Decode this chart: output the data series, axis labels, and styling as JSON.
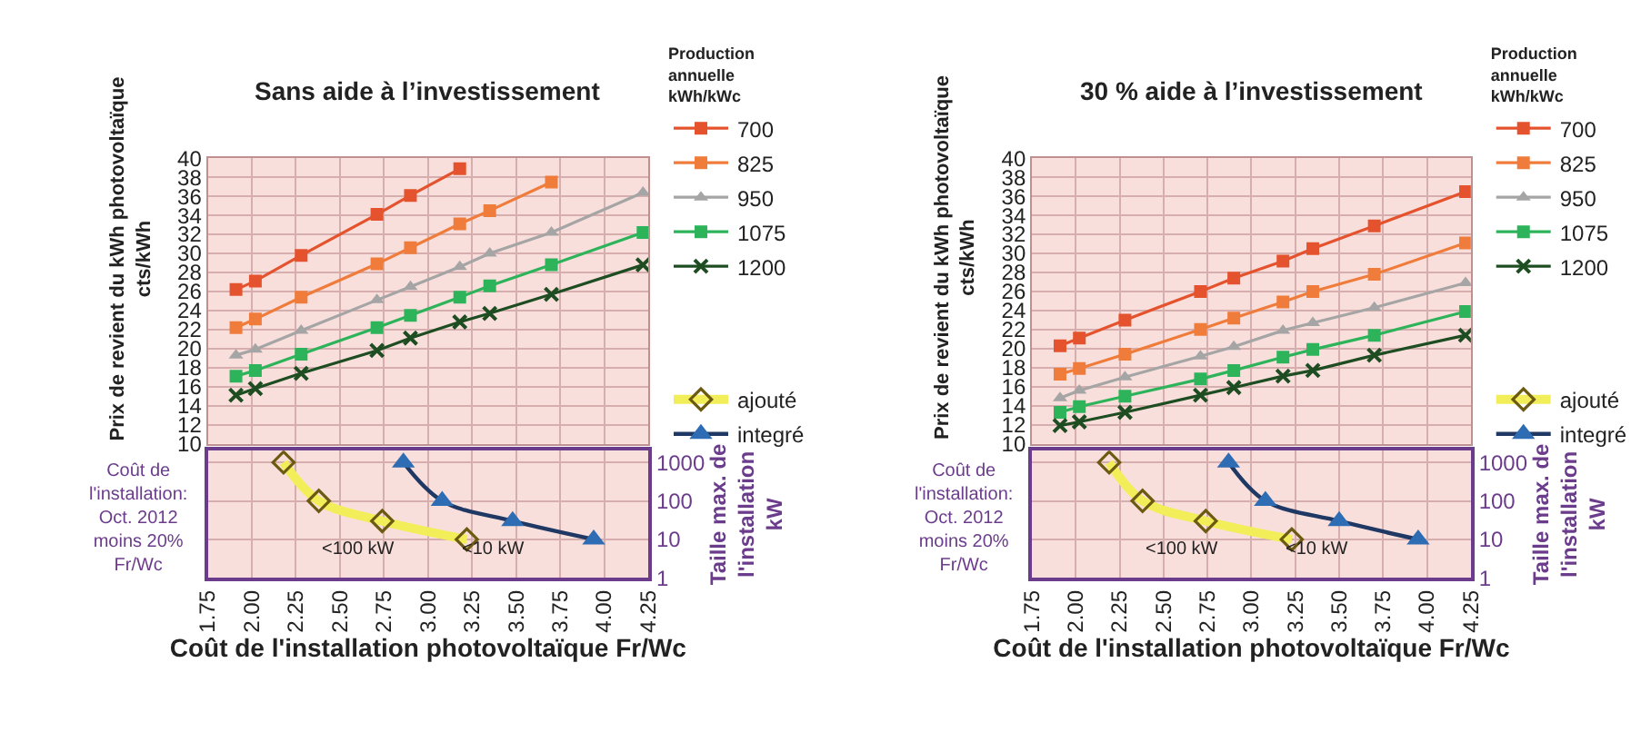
{
  "chart_data": [
    {
      "type": "line",
      "title": "Sans aide à l’investissement",
      "ylabel": "Prix de revient du kWh photovoltaïque\ncts/kWh",
      "legend_title": "Production\nannuelle\nkWh/kWc",
      "legend": "right",
      "grid": true,
      "tick_labels": "y",
      "x": [
        1.91,
        2.02,
        2.28,
        2.71,
        2.9,
        3.18,
        3.35,
        3.7,
        4.22
      ],
      "xlim": [
        1.75,
        4.25
      ],
      "xticks": [
        1.75,
        2,
        2.25,
        2.5,
        2.75,
        3,
        3.25,
        3.5,
        3.75,
        4,
        4.25
      ],
      "ylim": [
        10,
        40
      ],
      "yticks": [
        10,
        12,
        14,
        16,
        18,
        20,
        22,
        24,
        26,
        28,
        30,
        32,
        34,
        36,
        38,
        40
      ],
      "series": [
        {
          "name": "700",
          "color": "#e4532d",
          "marker": "square",
          "values": [
            26.2,
            27.1,
            29.8,
            34.1,
            36.1,
            38.9,
            null,
            null,
            null
          ]
        },
        {
          "name": "825",
          "color": "#f07c3c",
          "marker": "square",
          "values": [
            22.2,
            23.1,
            25.4,
            28.9,
            30.6,
            33.1,
            34.5,
            37.5,
            null
          ]
        },
        {
          "name": "950",
          "color": "#a5a5a5",
          "marker": "triangle",
          "values": [
            19.3,
            19.9,
            21.9,
            25.1,
            26.5,
            28.6,
            30.0,
            32.2,
            36.4
          ]
        },
        {
          "name": "1075",
          "color": "#2db45a",
          "marker": "square",
          "values": [
            17.1,
            17.7,
            19.4,
            22.2,
            23.5,
            25.4,
            26.6,
            28.8,
            32.2
          ]
        },
        {
          "name": "1200",
          "color": "#1e4d22",
          "marker": "cross",
          "values": [
            15.1,
            15.8,
            17.4,
            19.8,
            21.1,
            22.8,
            23.7,
            25.7,
            28.8
          ]
        }
      ]
    },
    {
      "type": "line",
      "xlabel": "Coût de l'installation photovoltaïque Fr/Wc",
      "y2label": "Taille max. de\nl'installation\nkW",
      "legend": "right",
      "grid": true,
      "log": "y2",
      "xlim": [
        1.75,
        4.25
      ],
      "xticks": [
        1.75,
        {
          "value": 2,
          "label": "2.00"
        },
        2.25,
        {
          "value": 2.5,
          "label": "2.50"
        },
        2.75,
        {
          "value": 3,
          "label": "3.00"
        },
        3.25,
        {
          "value": 3.5,
          "label": "3.50"
        },
        3.75,
        {
          "value": 4,
          "label": "4.00"
        },
        4.25
      ],
      "y2lim": [
        1,
        2000
      ],
      "y2ticks": [
        1,
        10,
        100,
        1000
      ],
      "annotations": [
        "Coût de\nl'installation:\nOct. 2012\nmoins 20%\nFr/Wc",
        "<100 kW",
        "<10 kW"
      ],
      "series": [
        {
          "name": "ajouté",
          "color": "#f2ee5a",
          "marker": "diamond",
          "axis": "y2",
          "x": [
            2.18,
            2.38,
            2.74,
            3.22
          ],
          "values": [
            1000,
            100,
            30,
            10
          ]
        },
        {
          "name": "integré",
          "color": "#1f3864",
          "marker": "triangle",
          "axis": "y2",
          "x": [
            2.86,
            3.08,
            3.48,
            3.94
          ],
          "values": [
            1000,
            100,
            30,
            10
          ]
        }
      ]
    },
    {
      "type": "line",
      "title": "30 % aide à l’investissement",
      "ylabel": "Prix de revient du kWh photovoltaïque\ncts/kWh",
      "legend_title": "Production\nannuelle\nkWh/kWc",
      "legend": "right",
      "grid": true,
      "tick_labels": "y",
      "x": [
        1.91,
        2.02,
        2.28,
        2.71,
        2.9,
        3.18,
        3.35,
        3.7,
        4.22
      ],
      "xlim": [
        1.75,
        4.25
      ],
      "xticks": [
        1.75,
        2,
        2.25,
        2.5,
        2.75,
        3,
        3.25,
        3.5,
        3.75,
        4,
        4.25
      ],
      "ylim": [
        10,
        40
      ],
      "yticks": [
        10,
        12,
        14,
        16,
        18,
        20,
        22,
        24,
        26,
        28,
        30,
        32,
        34,
        36,
        38,
        40
      ],
      "series": [
        {
          "name": "700",
          "color": "#e4532d",
          "marker": "square",
          "values": [
            20.3,
            21.1,
            23.0,
            26.0,
            27.4,
            29.2,
            30.5,
            32.9,
            36.5
          ]
        },
        {
          "name": "825",
          "color": "#f07c3c",
          "marker": "square",
          "values": [
            17.3,
            17.9,
            19.4,
            22.0,
            23.2,
            24.9,
            26.0,
            27.8,
            31.1
          ]
        },
        {
          "name": "950",
          "color": "#a5a5a5",
          "marker": "triangle",
          "values": [
            14.8,
            15.6,
            17.0,
            19.2,
            20.2,
            21.9,
            22.7,
            24.3,
            26.9
          ]
        },
        {
          "name": "1075",
          "color": "#2db45a",
          "marker": "square",
          "values": [
            13.3,
            13.9,
            15.0,
            16.8,
            17.7,
            19.1,
            19.9,
            21.4,
            23.9
          ]
        },
        {
          "name": "1200",
          "color": "#1e4d22",
          "marker": "cross",
          "values": [
            11.9,
            12.3,
            13.3,
            15.1,
            15.9,
            17.1,
            17.7,
            19.3,
            21.4
          ]
        }
      ]
    },
    {
      "type": "line",
      "xlabel": "Coût de l'installation photovoltaïque Fr/Wc",
      "y2label": "Taille max. de\nl'installation\nkW",
      "legend": "right",
      "grid": true,
      "log": "y2",
      "xlim": [
        1.75,
        4.25
      ],
      "xticks": [
        1.75,
        {
          "value": 2,
          "label": "2.00"
        },
        2.25,
        {
          "value": 2.5,
          "label": "2.50"
        },
        2.75,
        {
          "value": 3,
          "label": "3.00"
        },
        3.25,
        {
          "value": 3.5,
          "label": "3.50"
        },
        3.75,
        {
          "value": 4,
          "label": "4.00"
        },
        4.25
      ],
      "y2lim": [
        1,
        2000
      ],
      "y2ticks": [
        1,
        10,
        100,
        1000
      ],
      "annotations": [
        "Coût de\nl'installation:\nOct. 2012\nmoins 20%\nFr/Wc",
        "<100 kW",
        "<10 kW"
      ],
      "series": [
        {
          "name": "ajouté",
          "color": "#f2ee5a",
          "marker": "diamond",
          "axis": "y2",
          "x": [
            2.19,
            2.38,
            2.74,
            3.23
          ],
          "values": [
            1000,
            100,
            30,
            10
          ]
        },
        {
          "name": "integré",
          "color": "#1f3864",
          "marker": "triangle",
          "axis": "y2",
          "x": [
            2.87,
            3.08,
            3.5,
            3.95
          ],
          "values": [
            1000,
            100,
            30,
            10
          ]
        }
      ]
    }
  ]
}
